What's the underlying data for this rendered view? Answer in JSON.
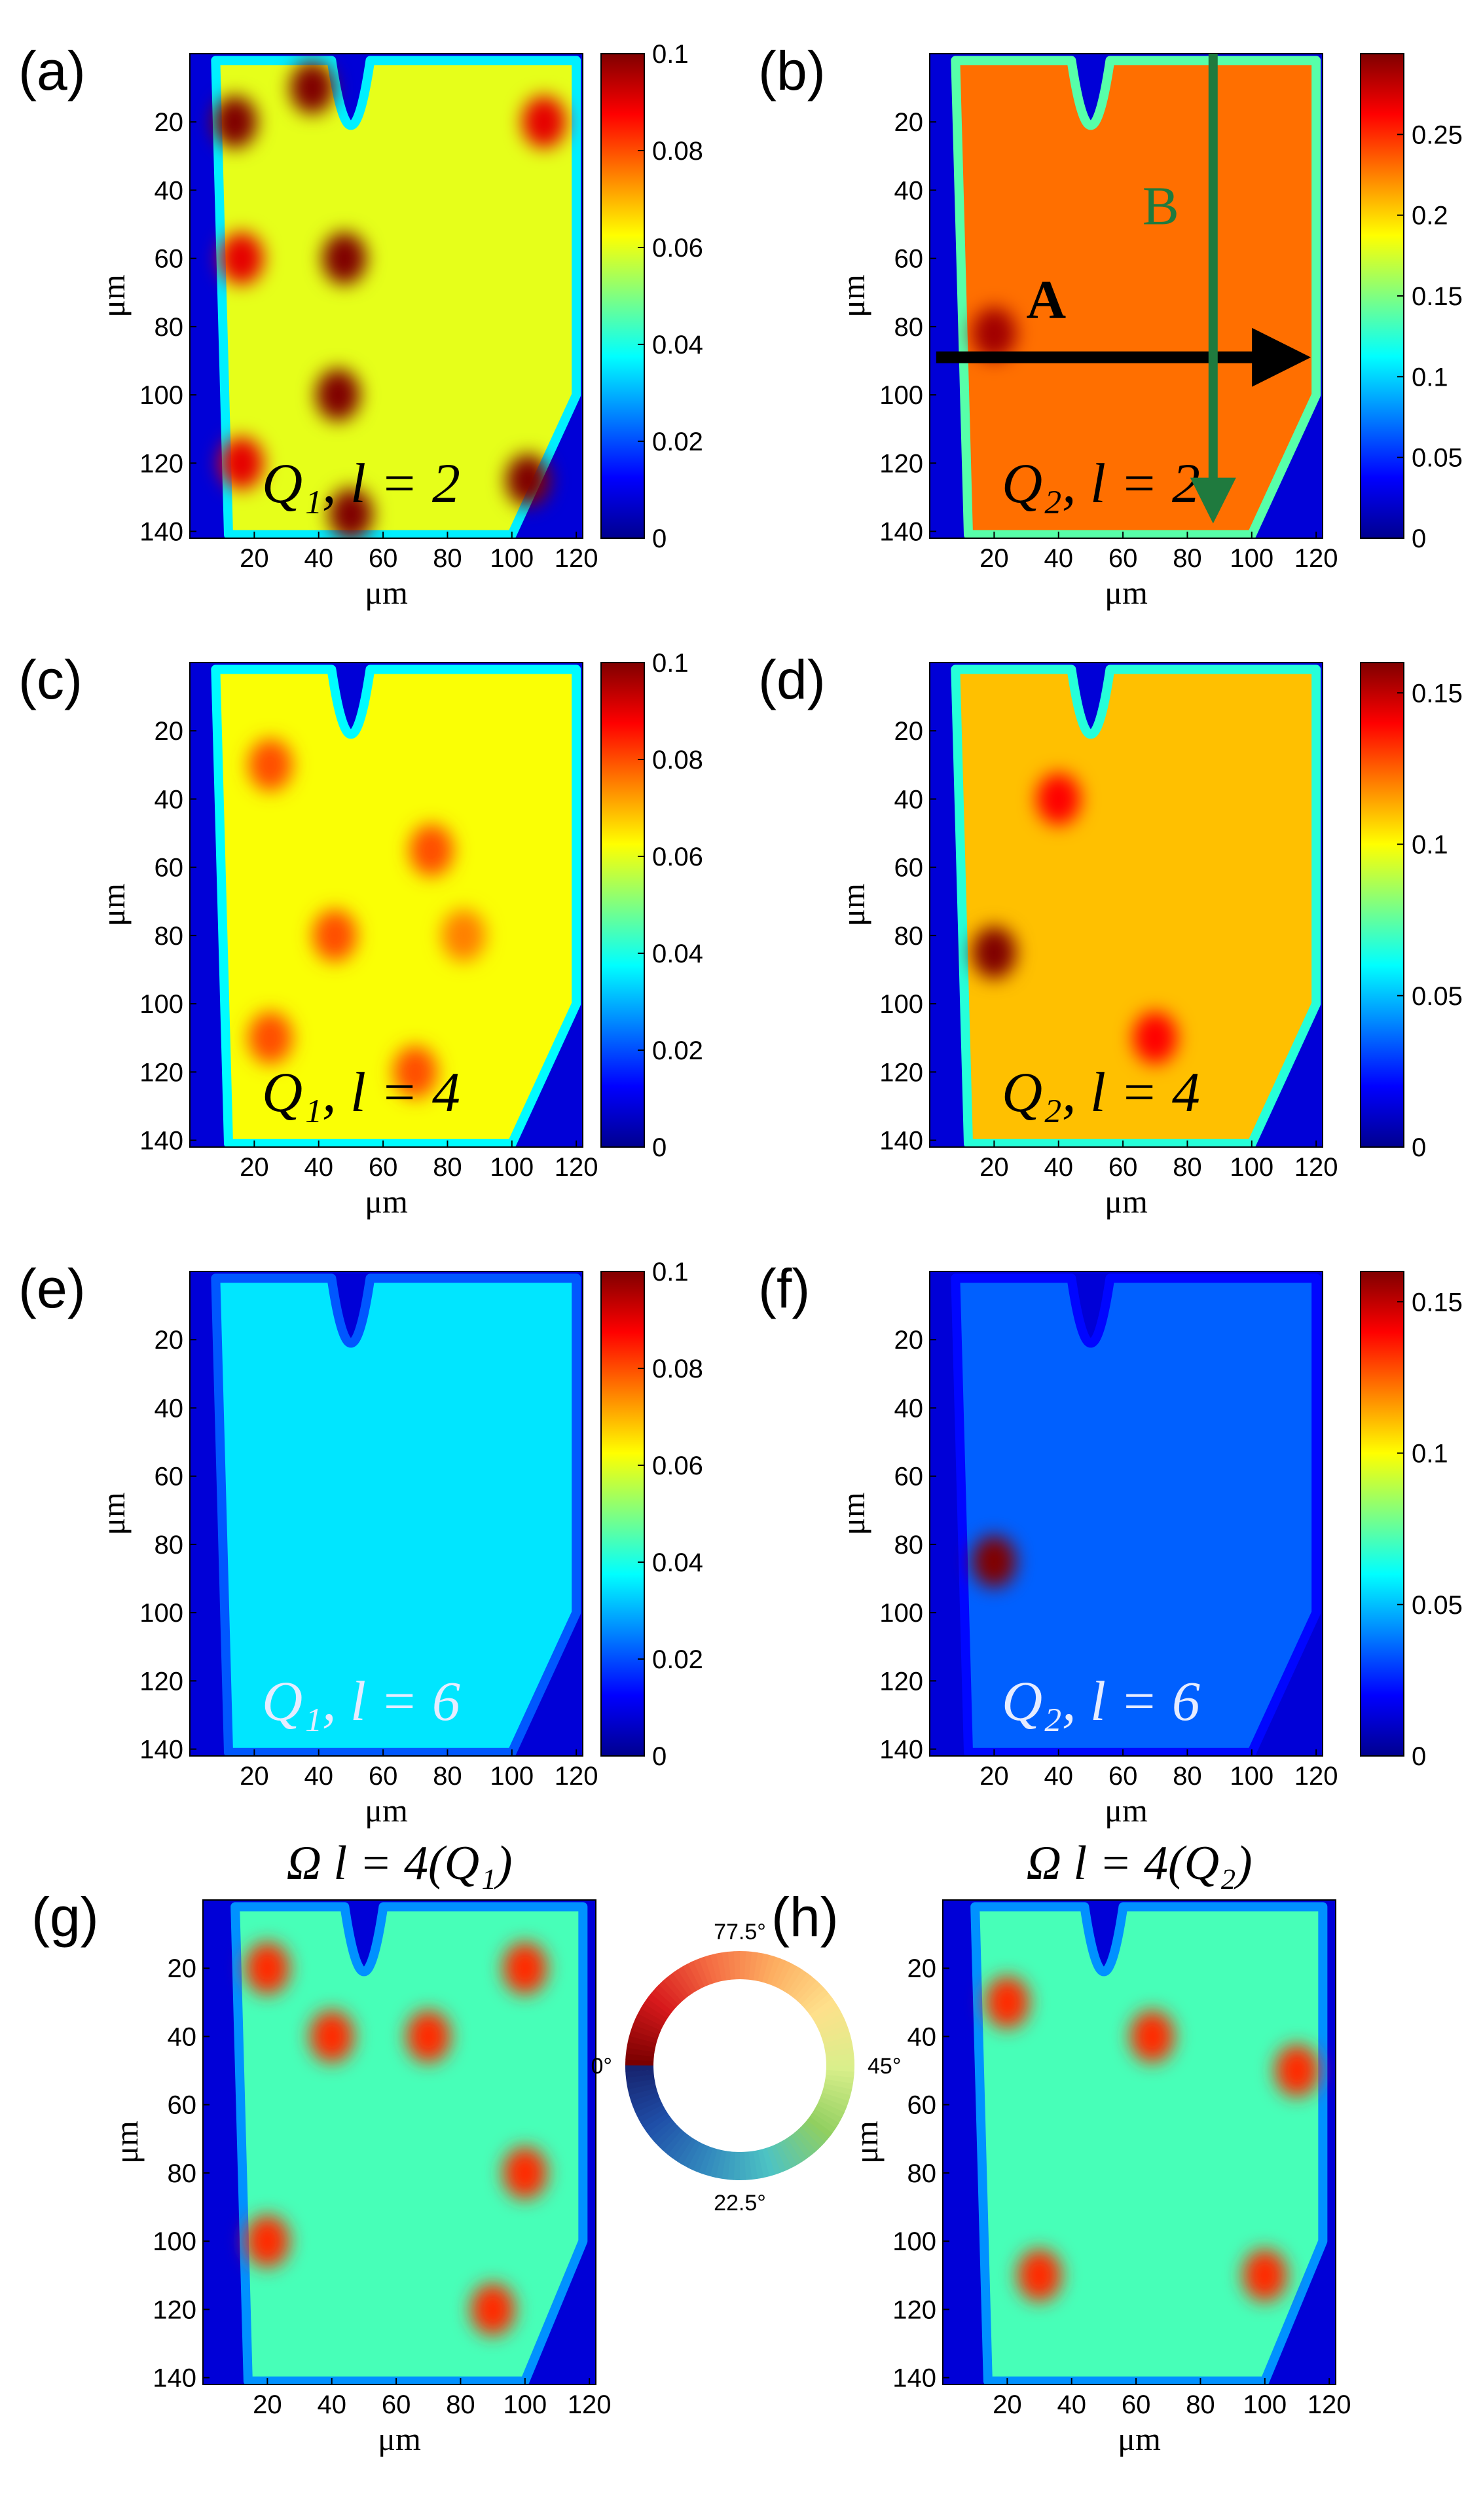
{
  "chart_data": [
    {
      "type": "heatmap",
      "panel": "(a)",
      "annotation": "Q₁, l = 2",
      "annotation_color": "dark",
      "xlabel": "μm",
      "ylabel": "μm",
      "xticks": [
        "20",
        "40",
        "60",
        "80",
        "100",
        "120"
      ],
      "yticks": [
        "20",
        "40",
        "60",
        "80",
        "100",
        "120",
        "140"
      ],
      "xlim": [
        0,
        122
      ],
      "ylim": [
        0,
        142
      ],
      "clim": [
        0,
        0.1
      ],
      "colorbar_ticks": [
        "0",
        "0.02",
        "0.04",
        "0.06",
        "0.08",
        "0.1"
      ],
      "colorbar_values": [
        0,
        0.02,
        0.04,
        0.06,
        0.08,
        0.1
      ],
      "background_level": 0.06,
      "x_range_shown": [
        8,
        122
      ],
      "hotspots": [
        {
          "x": 14,
          "y": 20,
          "v": 0.1
        },
        {
          "x": 16,
          "y": 60,
          "v": 0.09
        },
        {
          "x": 38,
          "y": 10,
          "v": 0.1
        },
        {
          "x": 48,
          "y": 60,
          "v": 0.1
        },
        {
          "x": 46,
          "y": 100,
          "v": 0.1
        },
        {
          "x": 50,
          "y": 135,
          "v": 0.1
        },
        {
          "x": 16,
          "y": 120,
          "v": 0.09
        },
        {
          "x": 110,
          "y": 20,
          "v": 0.09
        },
        {
          "x": 105,
          "y": 125,
          "v": 0.1
        }
      ]
    },
    {
      "type": "heatmap",
      "panel": "(b)",
      "annotation": "Q₂, l = 2",
      "annotation_color": "dark",
      "xlabel": "μm",
      "ylabel": "μm",
      "xticks": [
        "20",
        "40",
        "60",
        "80",
        "100",
        "120"
      ],
      "yticks": [
        "20",
        "40",
        "60",
        "80",
        "100",
        "120",
        "140"
      ],
      "xlim": [
        0,
        122
      ],
      "ylim": [
        0,
        142
      ],
      "clim": [
        0,
        0.3
      ],
      "colorbar_ticks": [
        "0",
        "0.05",
        "0.1",
        "0.15",
        "0.2",
        "0.25"
      ],
      "colorbar_values": [
        0,
        0.05,
        0.1,
        0.15,
        0.2,
        0.25
      ],
      "background_level": 0.23,
      "x_range_shown": [
        8,
        122
      ],
      "hotspots": [
        {
          "x": 20,
          "y": 82,
          "v": 0.29
        }
      ],
      "arrows": [
        {
          "label": "A",
          "direction": "horizontal",
          "y": 89,
          "x_from": 2,
          "x_to": 120,
          "color": "#000000"
        },
        {
          "label": "B",
          "direction": "vertical",
          "x": 88,
          "y_from": 0,
          "y_to": 140,
          "color": "#1f7a3e"
        }
      ]
    },
    {
      "type": "heatmap",
      "panel": "(c)",
      "annotation": "Q₁, l = 4",
      "annotation_color": "dark",
      "xlabel": "μm",
      "ylabel": "μm",
      "xticks": [
        "20",
        "40",
        "60",
        "80",
        "100",
        "120"
      ],
      "yticks": [
        "20",
        "40",
        "60",
        "80",
        "100",
        "120",
        "140"
      ],
      "xlim": [
        0,
        122
      ],
      "ylim": [
        0,
        142
      ],
      "clim": [
        0,
        0.1
      ],
      "colorbar_ticks": [
        "0",
        "0.02",
        "0.04",
        "0.06",
        "0.08",
        "0.1"
      ],
      "colorbar_values": [
        0,
        0.02,
        0.04,
        0.06,
        0.08,
        0.1
      ],
      "background_level": 0.062,
      "x_range_shown": [
        8,
        122
      ],
      "hotspots": [
        {
          "x": 25,
          "y": 30,
          "v": 0.08
        },
        {
          "x": 75,
          "y": 55,
          "v": 0.08
        },
        {
          "x": 45,
          "y": 80,
          "v": 0.08
        },
        {
          "x": 85,
          "y": 80,
          "v": 0.075
        },
        {
          "x": 25,
          "y": 110,
          "v": 0.08
        },
        {
          "x": 70,
          "y": 120,
          "v": 0.08
        }
      ]
    },
    {
      "type": "heatmap",
      "panel": "(d)",
      "annotation": "Q₂, l = 4",
      "annotation_color": "dark",
      "xlabel": "μm",
      "ylabel": "μm",
      "xticks": [
        "20",
        "40",
        "60",
        "80",
        "100",
        "120"
      ],
      "yticks": [
        "20",
        "40",
        "60",
        "80",
        "100",
        "120",
        "140"
      ],
      "xlim": [
        0,
        122
      ],
      "ylim": [
        0,
        142
      ],
      "clim": [
        0,
        0.16
      ],
      "colorbar_ticks": [
        "0",
        "0.05",
        "0.1",
        "0.15"
      ],
      "colorbar_values": [
        0,
        0.05,
        0.1,
        0.15
      ],
      "background_level": 0.11,
      "x_range_shown": [
        8,
        122
      ],
      "hotspots": [
        {
          "x": 20,
          "y": 85,
          "v": 0.16
        },
        {
          "x": 40,
          "y": 40,
          "v": 0.14
        },
        {
          "x": 70,
          "y": 110,
          "v": 0.14
        }
      ]
    },
    {
      "type": "heatmap",
      "panel": "(e)",
      "annotation": "Q₁, l = 6",
      "annotation_color": "light",
      "xlabel": "μm",
      "ylabel": "μm",
      "xticks": [
        "20",
        "40",
        "60",
        "80",
        "100",
        "120"
      ],
      "yticks": [
        "20",
        "40",
        "60",
        "80",
        "100",
        "120",
        "140"
      ],
      "xlim": [
        0,
        122
      ],
      "ylim": [
        0,
        142
      ],
      "clim": [
        0,
        0.1
      ],
      "colorbar_ticks": [
        "0",
        "0.02",
        "0.04",
        "0.06",
        "0.08",
        "0.1"
      ],
      "colorbar_values": [
        0,
        0.02,
        0.04,
        0.06,
        0.08,
        0.1
      ],
      "background_level": 0.035,
      "x_range_shown": [
        8,
        122
      ],
      "hotspots": []
    },
    {
      "type": "heatmap",
      "panel": "(f)",
      "annotation": "Q₂, l = 6",
      "annotation_color": "light",
      "xlabel": "μm",
      "ylabel": "μm",
      "xticks": [
        "20",
        "40",
        "60",
        "80",
        "100",
        "120"
      ],
      "yticks": [
        "20",
        "40",
        "60",
        "80",
        "100",
        "120",
        "140"
      ],
      "xlim": [
        0,
        122
      ],
      "ylim": [
        0,
        142
      ],
      "clim": [
        0,
        0.16
      ],
      "colorbar_ticks": [
        "0",
        "0.05",
        "0.1",
        "0.15"
      ],
      "colorbar_values": [
        0,
        0.05,
        0.1,
        0.15
      ],
      "background_level": 0.035,
      "x_range_shown": [
        8,
        122
      ],
      "hotspots": [
        {
          "x": 20,
          "y": 85,
          "v": 0.16
        }
      ]
    },
    {
      "type": "heatmap",
      "panel": "(g)",
      "title": "Ω l = 4(Q₁)",
      "xlabel": "μm",
      "ylabel": "μm",
      "xticks": [
        "20",
        "40",
        "60",
        "80",
        "100",
        "120"
      ],
      "yticks": [
        "20",
        "40",
        "60",
        "80",
        "100",
        "120",
        "140"
      ],
      "xlim": [
        0,
        122
      ],
      "ylim": [
        0,
        142
      ],
      "value_unit": "degrees",
      "background_level_deg": 40,
      "x_range_shown": [
        10,
        120
      ],
      "hotspots_deg": [
        {
          "x": 20,
          "y": 20,
          "v": 75
        },
        {
          "x": 40,
          "y": 40,
          "v": 75
        },
        {
          "x": 70,
          "y": 40,
          "v": 75
        },
        {
          "x": 100,
          "y": 20,
          "v": 75
        },
        {
          "x": 20,
          "y": 100,
          "v": 75
        },
        {
          "x": 100,
          "y": 80,
          "v": 75
        },
        {
          "x": 90,
          "y": 120,
          "v": 75
        }
      ]
    },
    {
      "type": "heatmap",
      "panel": "(h)",
      "title": "Ω l = 4(Q₂)",
      "xlabel": "μm",
      "ylabel": "μm",
      "xticks": [
        "20",
        "40",
        "60",
        "80",
        "100",
        "120"
      ],
      "yticks": [
        "20",
        "40",
        "60",
        "80",
        "100",
        "120",
        "140"
      ],
      "xlim": [
        0,
        122
      ],
      "ylim": [
        0,
        142
      ],
      "value_unit": "degrees",
      "background_level_deg": 40,
      "x_range_shown": [
        10,
        120
      ],
      "hotspots_deg": [
        {
          "x": 20,
          "y": 30,
          "v": 75
        },
        {
          "x": 30,
          "y": 110,
          "v": 75
        },
        {
          "x": 65,
          "y": 40,
          "v": 75
        },
        {
          "x": 100,
          "y": 110,
          "v": 75
        },
        {
          "x": 110,
          "y": 50,
          "v": 75
        }
      ]
    }
  ],
  "color_wheel": {
    "labels": [
      "77.5°",
      "45°",
      "22.5°",
      "0°"
    ],
    "colors": [
      "#7a0000",
      "#d7191c",
      "#f46d43",
      "#fdae61",
      "#fee08b",
      "#d9ef8b",
      "#91cf60",
      "#4dc3c3",
      "#3288bd",
      "#1f4fa8",
      "#16206b"
    ]
  },
  "colormap": [
    "#00008f",
    "#0000ff",
    "#0080ff",
    "#00ffff",
    "#80ff80",
    "#ffff00",
    "#ff8000",
    "#ff0000",
    "#800000"
  ]
}
